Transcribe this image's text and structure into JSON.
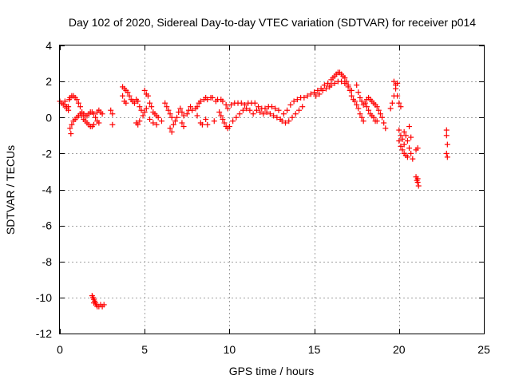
{
  "chart_data": {
    "type": "scatter",
    "title": "Day 102 of 2020, Sidereal Day-to-day VTEC variation (SDTVAR) for receiver p014",
    "xlabel": "GPS time / hours",
    "ylabel": "SDTVAR / TECUs",
    "xlim": [
      0,
      25
    ],
    "ylim": [
      -12,
      4
    ],
    "xticks": [
      0,
      5,
      10,
      15,
      20,
      25
    ],
    "yticks": [
      -12,
      -10,
      -8,
      -6,
      -4,
      -2,
      0,
      2,
      4
    ],
    "grid": true,
    "marker": "+",
    "color": "#ff0000",
    "series": [
      {
        "name": "p014",
        "points": [
          [
            0.0,
            0.9
          ],
          [
            0.1,
            0.8
          ],
          [
            0.2,
            0.7
          ],
          [
            0.3,
            0.7
          ],
          [
            0.4,
            0.6
          ],
          [
            0.5,
            0.6
          ],
          [
            0.3,
            0.9
          ],
          [
            0.4,
            0.5
          ],
          [
            0.5,
            0.4
          ],
          [
            0.55,
            1.0
          ],
          [
            0.6,
            1.1
          ],
          [
            0.7,
            1.2
          ],
          [
            0.8,
            1.2
          ],
          [
            0.9,
            1.1
          ],
          [
            1.0,
            1.0
          ],
          [
            1.1,
            0.8
          ],
          [
            1.2,
            0.6
          ],
          [
            0.6,
            -0.6
          ],
          [
            0.65,
            -0.9
          ],
          [
            0.7,
            -0.4
          ],
          [
            0.8,
            -0.2
          ],
          [
            0.9,
            -0.1
          ],
          [
            1.0,
            0.0
          ],
          [
            1.1,
            0.1
          ],
          [
            1.2,
            0.2
          ],
          [
            1.3,
            0.3
          ],
          [
            1.4,
            0.2
          ],
          [
            1.5,
            0.1
          ],
          [
            1.6,
            0.1
          ],
          [
            1.7,
            0.2
          ],
          [
            1.8,
            0.3
          ],
          [
            1.9,
            0.3
          ],
          [
            2.0,
            0.2
          ],
          [
            1.3,
            0.1
          ],
          [
            1.4,
            -0.1
          ],
          [
            1.5,
            -0.2
          ],
          [
            1.6,
            -0.3
          ],
          [
            1.7,
            -0.4
          ],
          [
            1.8,
            -0.5
          ],
          [
            1.9,
            -0.5
          ],
          [
            2.0,
            -0.4
          ],
          [
            2.1,
            0.0
          ],
          [
            2.2,
            0.3
          ],
          [
            2.3,
            0.4
          ],
          [
            2.4,
            0.3
          ],
          [
            2.5,
            0.2
          ],
          [
            2.2,
            -0.2
          ],
          [
            2.3,
            -0.3
          ],
          [
            3.1,
            -0.4
          ],
          [
            3.0,
            0.4
          ],
          [
            3.1,
            0.2
          ],
          [
            1.9,
            -9.9
          ],
          [
            1.95,
            -10.0
          ],
          [
            2.0,
            -10.1
          ],
          [
            2.05,
            -10.2
          ],
          [
            2.1,
            -10.3
          ],
          [
            2.15,
            -10.4
          ],
          [
            2.2,
            -10.5
          ],
          [
            2.3,
            -10.5
          ],
          [
            2.4,
            -10.4
          ],
          [
            2.5,
            -10.5
          ],
          [
            2.6,
            -10.4
          ],
          [
            2.0,
            -10.3
          ],
          [
            3.7,
            1.7
          ],
          [
            3.8,
            1.6
          ],
          [
            3.9,
            1.5
          ],
          [
            3.7,
            1.2
          ],
          [
            3.8,
            0.9
          ],
          [
            3.9,
            0.8
          ],
          [
            4.0,
            1.4
          ],
          [
            4.1,
            1.2
          ],
          [
            4.2,
            1.0
          ],
          [
            4.3,
            0.9
          ],
          [
            4.4,
            0.8
          ],
          [
            4.5,
            1.0
          ],
          [
            4.6,
            0.9
          ],
          [
            4.7,
            0.6
          ],
          [
            4.8,
            0.4
          ],
          [
            4.5,
            -0.3
          ],
          [
            4.6,
            -0.4
          ],
          [
            4.7,
            -0.2
          ],
          [
            4.9,
            0.1
          ],
          [
            5.0,
            0.3
          ],
          [
            5.1,
            0.5
          ],
          [
            5.0,
            1.5
          ],
          [
            5.1,
            1.3
          ],
          [
            5.2,
            1.2
          ],
          [
            5.3,
            0.8
          ],
          [
            5.4,
            0.6
          ],
          [
            5.5,
            0.3
          ],
          [
            5.6,
            0.2
          ],
          [
            5.7,
            0.1
          ],
          [
            5.3,
            -0.1
          ],
          [
            5.5,
            -0.3
          ],
          [
            5.7,
            -0.4
          ],
          [
            5.8,
            0.0
          ],
          [
            6.0,
            -0.2
          ],
          [
            6.2,
            0.8
          ],
          [
            6.3,
            0.6
          ],
          [
            6.4,
            0.4
          ],
          [
            6.5,
            0.2
          ],
          [
            6.6,
            0.0
          ],
          [
            6.5,
            -0.6
          ],
          [
            6.6,
            -0.8
          ],
          [
            6.7,
            -0.4
          ],
          [
            6.8,
            -0.2
          ],
          [
            6.9,
            0.0
          ],
          [
            7.0,
            0.3
          ],
          [
            7.1,
            0.5
          ],
          [
            7.2,
            0.3
          ],
          [
            7.3,
            0.1
          ],
          [
            7.2,
            -0.3
          ],
          [
            7.3,
            -0.5
          ],
          [
            7.5,
            0.2
          ],
          [
            7.6,
            0.4
          ],
          [
            7.7,
            0.6
          ],
          [
            7.8,
            0.4
          ],
          [
            8.1,
            0.6
          ],
          [
            8.2,
            0.8
          ],
          [
            8.3,
            0.9
          ],
          [
            8.5,
            1.0
          ],
          [
            8.6,
            1.1
          ],
          [
            8.7,
            1.0
          ],
          [
            8.9,
            1.1
          ],
          [
            9.0,
            1.1
          ],
          [
            8.0,
            0.5
          ],
          [
            8.1,
            0.1
          ],
          [
            8.3,
            -0.3
          ],
          [
            8.4,
            -0.4
          ],
          [
            8.6,
            -0.1
          ],
          [
            8.7,
            -0.4
          ],
          [
            9.1,
            -0.2
          ],
          [
            9.2,
            0.9
          ],
          [
            9.3,
            1.0
          ],
          [
            9.5,
            1.0
          ],
          [
            9.6,
            0.9
          ],
          [
            9.8,
            0.7
          ],
          [
            9.9,
            0.5
          ],
          [
            9.4,
            0.3
          ],
          [
            9.5,
            0.1
          ],
          [
            9.6,
            -0.1
          ],
          [
            9.7,
            -0.3
          ],
          [
            9.8,
            -0.5
          ],
          [
            9.9,
            -0.6
          ],
          [
            10.0,
            -0.5
          ],
          [
            10.2,
            -0.2
          ],
          [
            10.4,
            0.0
          ],
          [
            10.6,
            0.2
          ],
          [
            10.8,
            0.4
          ],
          [
            11.0,
            0.5
          ],
          [
            11.2,
            0.4
          ],
          [
            11.4,
            0.2
          ],
          [
            10.1,
            0.7
          ],
          [
            10.3,
            0.8
          ],
          [
            10.5,
            0.8
          ],
          [
            10.7,
            0.8
          ],
          [
            10.9,
            0.7
          ],
          [
            11.1,
            0.8
          ],
          [
            11.3,
            0.8
          ],
          [
            11.5,
            0.8
          ],
          [
            11.7,
            0.6
          ],
          [
            11.9,
            0.5
          ],
          [
            12.1,
            0.5
          ],
          [
            12.3,
            0.6
          ],
          [
            12.5,
            0.6
          ],
          [
            12.7,
            0.5
          ],
          [
            12.9,
            0.4
          ],
          [
            11.6,
            0.4
          ],
          [
            11.8,
            0.3
          ],
          [
            12.0,
            0.2
          ],
          [
            12.2,
            0.3
          ],
          [
            12.4,
            0.2
          ],
          [
            12.6,
            0.1
          ],
          [
            12.8,
            0.0
          ],
          [
            13.0,
            -0.1
          ],
          [
            13.1,
            -0.2
          ],
          [
            13.3,
            -0.3
          ],
          [
            13.5,
            -0.2
          ],
          [
            13.7,
            0.0
          ],
          [
            13.9,
            0.2
          ],
          [
            14.1,
            0.4
          ],
          [
            14.3,
            0.6
          ],
          [
            13.2,
            0.2
          ],
          [
            13.4,
            0.4
          ],
          [
            13.6,
            0.7
          ],
          [
            13.8,
            0.9
          ],
          [
            14.0,
            1.0
          ],
          [
            14.2,
            1.1
          ],
          [
            14.4,
            1.1
          ],
          [
            14.6,
            1.2
          ],
          [
            14.8,
            1.3
          ],
          [
            15.0,
            1.4
          ],
          [
            15.2,
            1.5
          ],
          [
            15.4,
            1.6
          ],
          [
            15.6,
            1.8
          ],
          [
            15.8,
            1.9
          ],
          [
            15.1,
            1.2
          ],
          [
            15.3,
            1.3
          ],
          [
            15.5,
            1.5
          ],
          [
            15.7,
            1.6
          ],
          [
            15.9,
            1.7
          ],
          [
            16.0,
            1.8
          ],
          [
            16.0,
            2.1
          ],
          [
            16.1,
            2.2
          ],
          [
            16.2,
            2.3
          ],
          [
            16.3,
            2.4
          ],
          [
            16.4,
            2.5
          ],
          [
            16.5,
            2.5
          ],
          [
            16.6,
            2.4
          ],
          [
            16.7,
            2.3
          ],
          [
            16.8,
            2.2
          ],
          [
            16.9,
            2.0
          ],
          [
            17.0,
            1.8
          ],
          [
            17.1,
            1.5
          ],
          [
            17.2,
            1.2
          ],
          [
            17.3,
            1.0
          ],
          [
            16.2,
            1.9
          ],
          [
            16.4,
            2.0
          ],
          [
            16.6,
            2.0
          ],
          [
            16.8,
            1.9
          ],
          [
            17.0,
            1.7
          ],
          [
            17.2,
            1.5
          ],
          [
            17.4,
            0.9
          ],
          [
            17.5,
            0.7
          ],
          [
            17.6,
            0.5
          ],
          [
            17.7,
            0.2
          ],
          [
            17.8,
            0.0
          ],
          [
            17.9,
            -0.2
          ],
          [
            17.5,
            1.8
          ],
          [
            17.6,
            1.4
          ],
          [
            17.7,
            1.1
          ],
          [
            17.8,
            0.9
          ],
          [
            17.9,
            0.7
          ],
          [
            18.0,
            0.8
          ],
          [
            18.1,
            0.6
          ],
          [
            18.2,
            0.4
          ],
          [
            18.3,
            0.2
          ],
          [
            18.4,
            0.1
          ],
          [
            18.5,
            0.0
          ],
          [
            18.6,
            -0.2
          ],
          [
            18.7,
            -0.2
          ],
          [
            18.1,
            1.0
          ],
          [
            18.2,
            1.1
          ],
          [
            18.3,
            1.0
          ],
          [
            18.4,
            0.9
          ],
          [
            18.5,
            0.8
          ],
          [
            18.6,
            0.7
          ],
          [
            18.7,
            0.6
          ],
          [
            18.8,
            0.4
          ],
          [
            18.9,
            0.2
          ],
          [
            19.0,
            0.0
          ],
          [
            19.1,
            -0.3
          ],
          [
            19.2,
            -0.6
          ],
          [
            19.5,
            0.5
          ],
          [
            19.6,
            0.8
          ],
          [
            19.7,
            1.2
          ],
          [
            19.8,
            1.6
          ],
          [
            19.9,
            1.9
          ],
          [
            19.7,
            2.0
          ],
          [
            19.8,
            1.8
          ],
          [
            19.9,
            1.2
          ],
          [
            20.0,
            0.8
          ],
          [
            20.1,
            0.6
          ],
          [
            20.0,
            -0.7
          ],
          [
            20.1,
            -1.0
          ],
          [
            20.2,
            -1.2
          ],
          [
            20.3,
            -1.5
          ],
          [
            20.0,
            -1.3
          ],
          [
            20.1,
            -1.6
          ],
          [
            20.2,
            -1.8
          ],
          [
            20.3,
            -2.0
          ],
          [
            20.4,
            -2.1
          ],
          [
            20.5,
            -2.2
          ],
          [
            20.3,
            -0.8
          ],
          [
            20.4,
            -1.0
          ],
          [
            20.5,
            -1.3
          ],
          [
            20.6,
            -1.7
          ],
          [
            20.7,
            -2.0
          ],
          [
            20.8,
            -2.3
          ],
          [
            20.6,
            -0.5
          ],
          [
            20.7,
            -1.1
          ],
          [
            21.0,
            -1.8
          ],
          [
            21.1,
            -1.7
          ],
          [
            21.0,
            -3.3
          ],
          [
            21.05,
            -3.5
          ],
          [
            21.1,
            -3.6
          ],
          [
            21.15,
            -3.8
          ],
          [
            21.1,
            -3.4
          ],
          [
            22.8,
            -0.7
          ],
          [
            22.8,
            -1.0
          ],
          [
            22.85,
            -1.5
          ],
          [
            22.8,
            -2.0
          ],
          [
            22.85,
            -2.2
          ]
        ]
      }
    ]
  }
}
